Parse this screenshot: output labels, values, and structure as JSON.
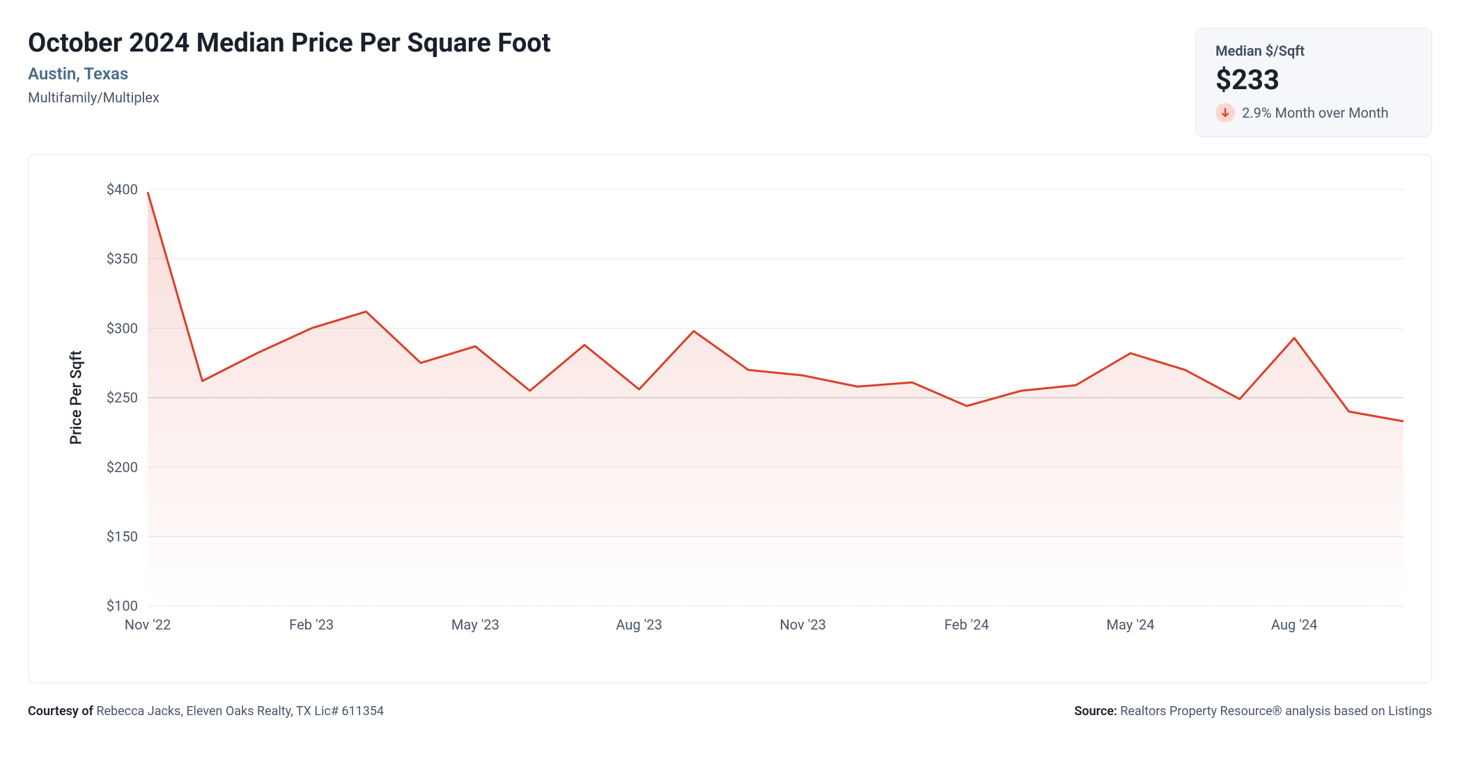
{
  "header": {
    "title": "October 2024 Median Price Per Square Foot",
    "location": "Austin, Texas",
    "category": "Multifamily/Multiplex"
  },
  "stat_card": {
    "label": "Median $/Sqft",
    "value": "$233",
    "change_text": "2.9% Month over Month",
    "direction": "down",
    "icon_bg": "#fcd6d0",
    "icon_fg": "#d9402a"
  },
  "chart": {
    "type": "area-line",
    "line_color": "#d9402a",
    "line_width": 3,
    "fill_top": "rgba(217,64,42,0.18)",
    "fill_bottom": "rgba(217,64,42,0.0)",
    "background_color": "#ffffff",
    "grid_color": "#e5e7eb",
    "y_axis": {
      "title": "Price Per Sqft",
      "min": 100,
      "max": 400,
      "step": 50,
      "tick_prefix": "$",
      "ticks": [
        100,
        150,
        200,
        250,
        300,
        350,
        400
      ],
      "label_fontsize": 20,
      "title_fontsize": 22
    },
    "x_axis": {
      "label_fontsize": 20,
      "tick_indices": [
        0,
        3,
        6,
        9,
        12,
        15,
        18,
        21
      ],
      "tick_labels": [
        "Nov '22",
        "Feb '23",
        "May '23",
        "Aug '23",
        "Nov '23",
        "Feb '24",
        "May '24",
        "Aug '24"
      ]
    },
    "data_points": [
      {
        "i": 0,
        "label": "Nov '22",
        "value": 398
      },
      {
        "i": 1,
        "label": "Dec '22",
        "value": 262
      },
      {
        "i": 2,
        "label": "Jan '23",
        "value": 282
      },
      {
        "i": 3,
        "label": "Feb '23",
        "value": 300
      },
      {
        "i": 4,
        "label": "Mar '23",
        "value": 312
      },
      {
        "i": 5,
        "label": "Apr '23",
        "value": 275
      },
      {
        "i": 6,
        "label": "May '23",
        "value": 287
      },
      {
        "i": 7,
        "label": "Jun '23",
        "value": 255
      },
      {
        "i": 8,
        "label": "Jul '23",
        "value": 288
      },
      {
        "i": 9,
        "label": "Aug '23",
        "value": 256
      },
      {
        "i": 10,
        "label": "Sep '23",
        "value": 298
      },
      {
        "i": 11,
        "label": "Oct '23",
        "value": 270
      },
      {
        "i": 12,
        "label": "Nov '23",
        "value": 266
      },
      {
        "i": 13,
        "label": "Dec '23",
        "value": 258
      },
      {
        "i": 14,
        "label": "Jan '24",
        "value": 261
      },
      {
        "i": 15,
        "label": "Feb '24",
        "value": 244
      },
      {
        "i": 16,
        "label": "Mar '24",
        "value": 255
      },
      {
        "i": 17,
        "label": "Apr '24",
        "value": 259
      },
      {
        "i": 18,
        "label": "May '24",
        "value": 282
      },
      {
        "i": 19,
        "label": "Jun '24",
        "value": 270
      },
      {
        "i": 20,
        "label": "Jul '24",
        "value": 249
      },
      {
        "i": 21,
        "label": "Aug '24",
        "value": 293
      },
      {
        "i": 22,
        "label": "Sep '24",
        "value": 240
      },
      {
        "i": 23,
        "label": "Oct '24",
        "value": 233
      }
    ]
  },
  "footer": {
    "courtesy_label": "Courtesy of",
    "courtesy_text": "Rebecca Jacks, Eleven Oaks Realty, TX Lic# 611354",
    "source_label": "Source:",
    "source_text": "Realtors Property Resource® analysis based on Listings"
  }
}
